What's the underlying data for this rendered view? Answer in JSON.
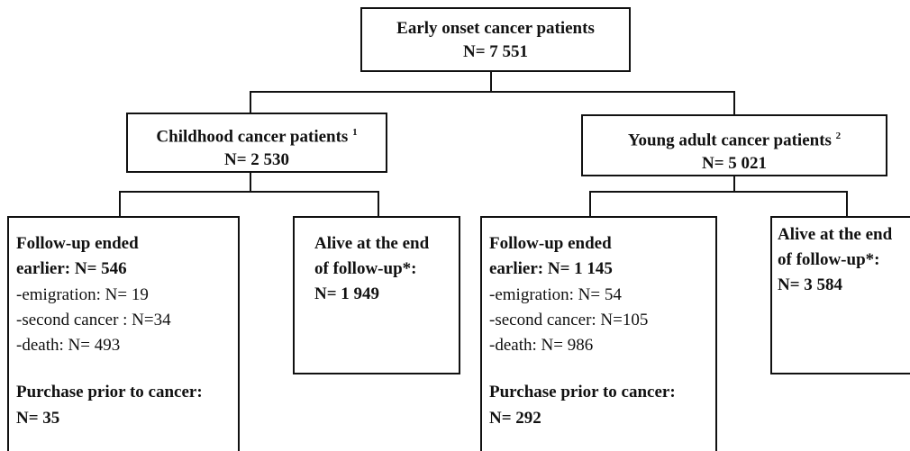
{
  "nodes": {
    "root": {
      "title": "Early onset cancer patients",
      "n": "N= 7 551"
    },
    "childhood": {
      "title": "Childhood cancer patients",
      "note": "1",
      "n": "N= 2 530"
    },
    "young_adult": {
      "title": "Young adult cancer patients",
      "note": "2",
      "n": "N= 5 021"
    },
    "childhood_ended": {
      "heading": [
        "Follow-up ended",
        "earlier: N= 546"
      ],
      "details": [
        "-emigration: N= 19",
        "-second cancer : N=34",
        "-death: N= 493"
      ],
      "purchase": [
        "Purchase prior to cancer:",
        "N= 35"
      ]
    },
    "childhood_alive": {
      "lines": [
        "Alive at the end",
        "of follow-up*:",
        "N= 1 949"
      ]
    },
    "young_ended": {
      "heading": [
        "Follow-up ended",
        "earlier: N= 1 145"
      ],
      "details": [
        "-emigration: N= 54",
        "-second cancer: N=105",
        "-death: N= 986"
      ],
      "purchase": [
        "Purchase prior to cancer:",
        "N= 292"
      ]
    },
    "young_alive": {
      "lines": [
        "Alive at the end",
        "of follow-up*:",
        "N= 3 584"
      ]
    }
  }
}
